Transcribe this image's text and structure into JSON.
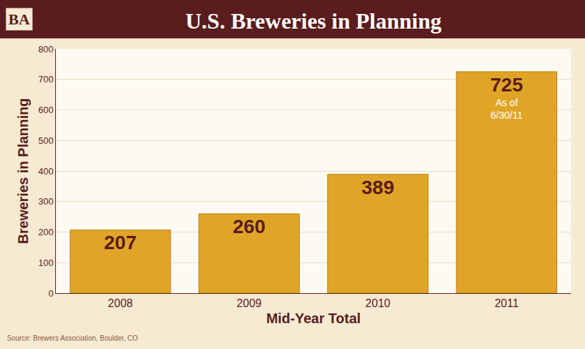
{
  "chart_data": {
    "type": "bar",
    "title": "U.S. Breweries in Planning",
    "logo_text": "BA",
    "categories": [
      "2008",
      "2009",
      "2010",
      "2011"
    ],
    "values": [
      207,
      260,
      389,
      725
    ],
    "color": "#e0a526",
    "x_label": "Mid-Year Total",
    "y_label": "Breweries in Planning",
    "ylim": [
      0,
      800
    ],
    "yticks": [
      0,
      100,
      200,
      300,
      400,
      500,
      600,
      700,
      800
    ],
    "grid": true,
    "data_labels": true,
    "annotations": [
      {
        "text": "As of 6/30/11",
        "category": "2011"
      }
    ],
    "source": "Source: Brewers Association, Boulder, CO"
  }
}
